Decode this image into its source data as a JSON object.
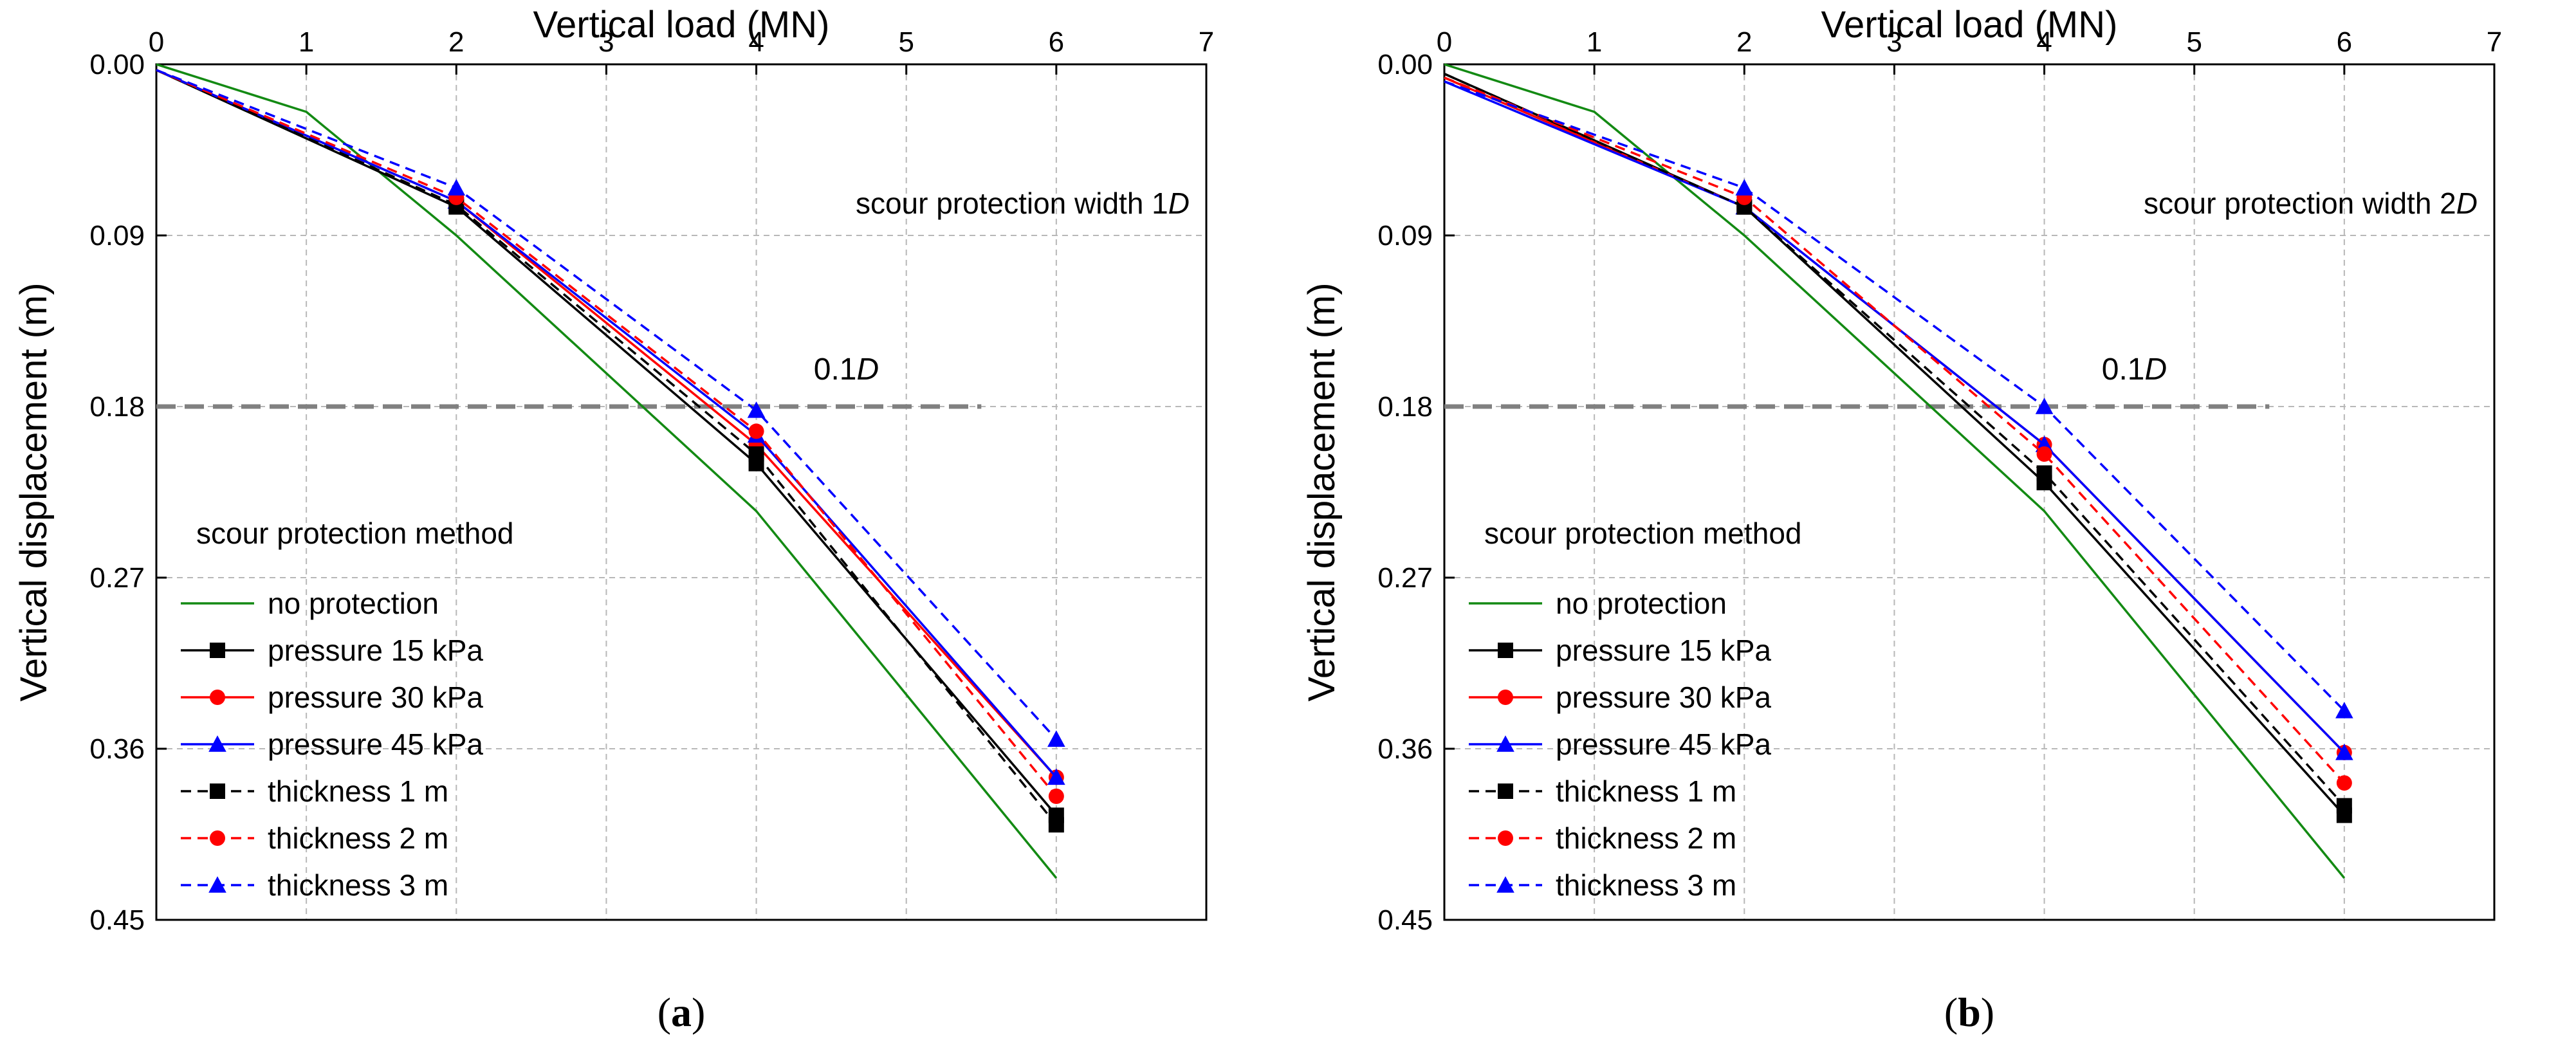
{
  "chart_data": [
    {
      "type": "line",
      "panel_label": "a",
      "title": "",
      "xlabel": "Vertical load (MN)",
      "ylabel": "Vertical displacement (m)",
      "xlim": [
        0,
        7
      ],
      "ylim": [
        0,
        0.45
      ],
      "y_inverted": true,
      "x_axis_position": "top",
      "xticks": [
        "0",
        "1",
        "2",
        "3",
        "4",
        "5",
        "6",
        "7"
      ],
      "yticks": [
        "0.00",
        "0.09",
        "0.18",
        "0.27",
        "0.36",
        "0.45"
      ],
      "grid": true,
      "annotation": {
        "prefix": "scour protection width 1",
        "var": "D"
      },
      "reference_line": {
        "y": 0.18,
        "x_start": 0,
        "x_end": 5.5,
        "label_prefix": "0.1",
        "label_var": "D"
      },
      "legend": {
        "title": "scour protection method",
        "position": "bottom-left"
      },
      "series": [
        {
          "name": "no protection",
          "style": "solid",
          "color": "#138a13",
          "marker": "none",
          "x": [
            0,
            1,
            2,
            4,
            6
          ],
          "y": [
            0,
            0.025,
            0.09,
            0.235,
            0.428
          ]
        },
        {
          "name": "pressure 15 kPa",
          "style": "solid",
          "color": "#000000",
          "marker": "square",
          "x": [
            0,
            2,
            4,
            6
          ],
          "y": [
            0.003,
            0.075,
            0.21,
            0.395
          ]
        },
        {
          "name": "pressure 30 kPa",
          "style": "solid",
          "color": "#ff0000",
          "marker": "circle",
          "x": [
            0,
            2,
            4,
            6
          ],
          "y": [
            0.003,
            0.072,
            0.2,
            0.375
          ]
        },
        {
          "name": "pressure 45 kPa",
          "style": "solid",
          "color": "#0000ff",
          "marker": "triangle",
          "x": [
            0,
            2,
            4,
            6
          ],
          "y": [
            0.003,
            0.072,
            0.195,
            0.375
          ]
        },
        {
          "name": "thickness 1 m",
          "style": "dashed",
          "color": "#000000",
          "marker": "square",
          "x": [
            0,
            2,
            4,
            6
          ],
          "y": [
            0.003,
            0.074,
            0.205,
            0.4
          ]
        },
        {
          "name": "thickness 2 m",
          "style": "dashed",
          "color": "#ff0000",
          "marker": "circle",
          "x": [
            0,
            2,
            4,
            6
          ],
          "y": [
            0.003,
            0.07,
            0.193,
            0.385
          ]
        },
        {
          "name": "thickness 3 m",
          "style": "dashed",
          "color": "#0000ff",
          "marker": "triangle",
          "x": [
            0,
            2,
            4,
            6
          ],
          "y": [
            0.003,
            0.065,
            0.182,
            0.355
          ]
        }
      ]
    },
    {
      "type": "line",
      "panel_label": "b",
      "title": "",
      "xlabel": "Vertical load (MN)",
      "ylabel": "Vertical displacement (m)",
      "xlim": [
        0,
        7
      ],
      "ylim": [
        0,
        0.45
      ],
      "y_inverted": true,
      "x_axis_position": "top",
      "xticks": [
        "0",
        "1",
        "2",
        "3",
        "4",
        "5",
        "6",
        "7"
      ],
      "yticks": [
        "0.00",
        "0.09",
        "0.18",
        "0.27",
        "0.36",
        "0.45"
      ],
      "grid": true,
      "annotation": {
        "prefix": "scour protection width 2",
        "var": "D"
      },
      "reference_line": {
        "y": 0.18,
        "x_start": 0,
        "x_end": 5.5,
        "label_prefix": "0.1",
        "label_var": "D"
      },
      "legend": {
        "title": "scour protection method",
        "position": "bottom-left"
      },
      "series": [
        {
          "name": "no protection",
          "style": "solid",
          "color": "#138a13",
          "marker": "none",
          "x": [
            0,
            1,
            2,
            4,
            6
          ],
          "y": [
            0,
            0.025,
            0.09,
            0.235,
            0.428
          ]
        },
        {
          "name": "pressure 15 kPa",
          "style": "solid",
          "color": "#000000",
          "marker": "square",
          "x": [
            0,
            2,
            4,
            6
          ],
          "y": [
            0.005,
            0.075,
            0.22,
            0.395
          ]
        },
        {
          "name": "pressure 30 kPa",
          "style": "solid",
          "color": "#ff0000",
          "marker": "circle",
          "x": [
            0,
            2,
            4,
            6
          ],
          "y": [
            0.007,
            0.075,
            0.2,
            0.362
          ]
        },
        {
          "name": "pressure 45 kPa",
          "style": "solid",
          "color": "#0000ff",
          "marker": "triangle",
          "x": [
            0,
            2,
            4,
            6
          ],
          "y": [
            0.009,
            0.075,
            0.2,
            0.362
          ]
        },
        {
          "name": "thickness 1 m",
          "style": "dashed",
          "color": "#000000",
          "marker": "square",
          "x": [
            0,
            2,
            4,
            6
          ],
          "y": [
            0.005,
            0.075,
            0.215,
            0.39
          ]
        },
        {
          "name": "thickness 2 m",
          "style": "dashed",
          "color": "#ff0000",
          "marker": "circle",
          "x": [
            0,
            2,
            4,
            6
          ],
          "y": [
            0.007,
            0.07,
            0.205,
            0.378
          ]
        },
        {
          "name": "thickness 3 m",
          "style": "dashed",
          "color": "#0000ff",
          "marker": "triangle",
          "x": [
            0,
            2,
            4,
            6
          ],
          "y": [
            0.009,
            0.065,
            0.18,
            0.34
          ]
        }
      ]
    }
  ]
}
